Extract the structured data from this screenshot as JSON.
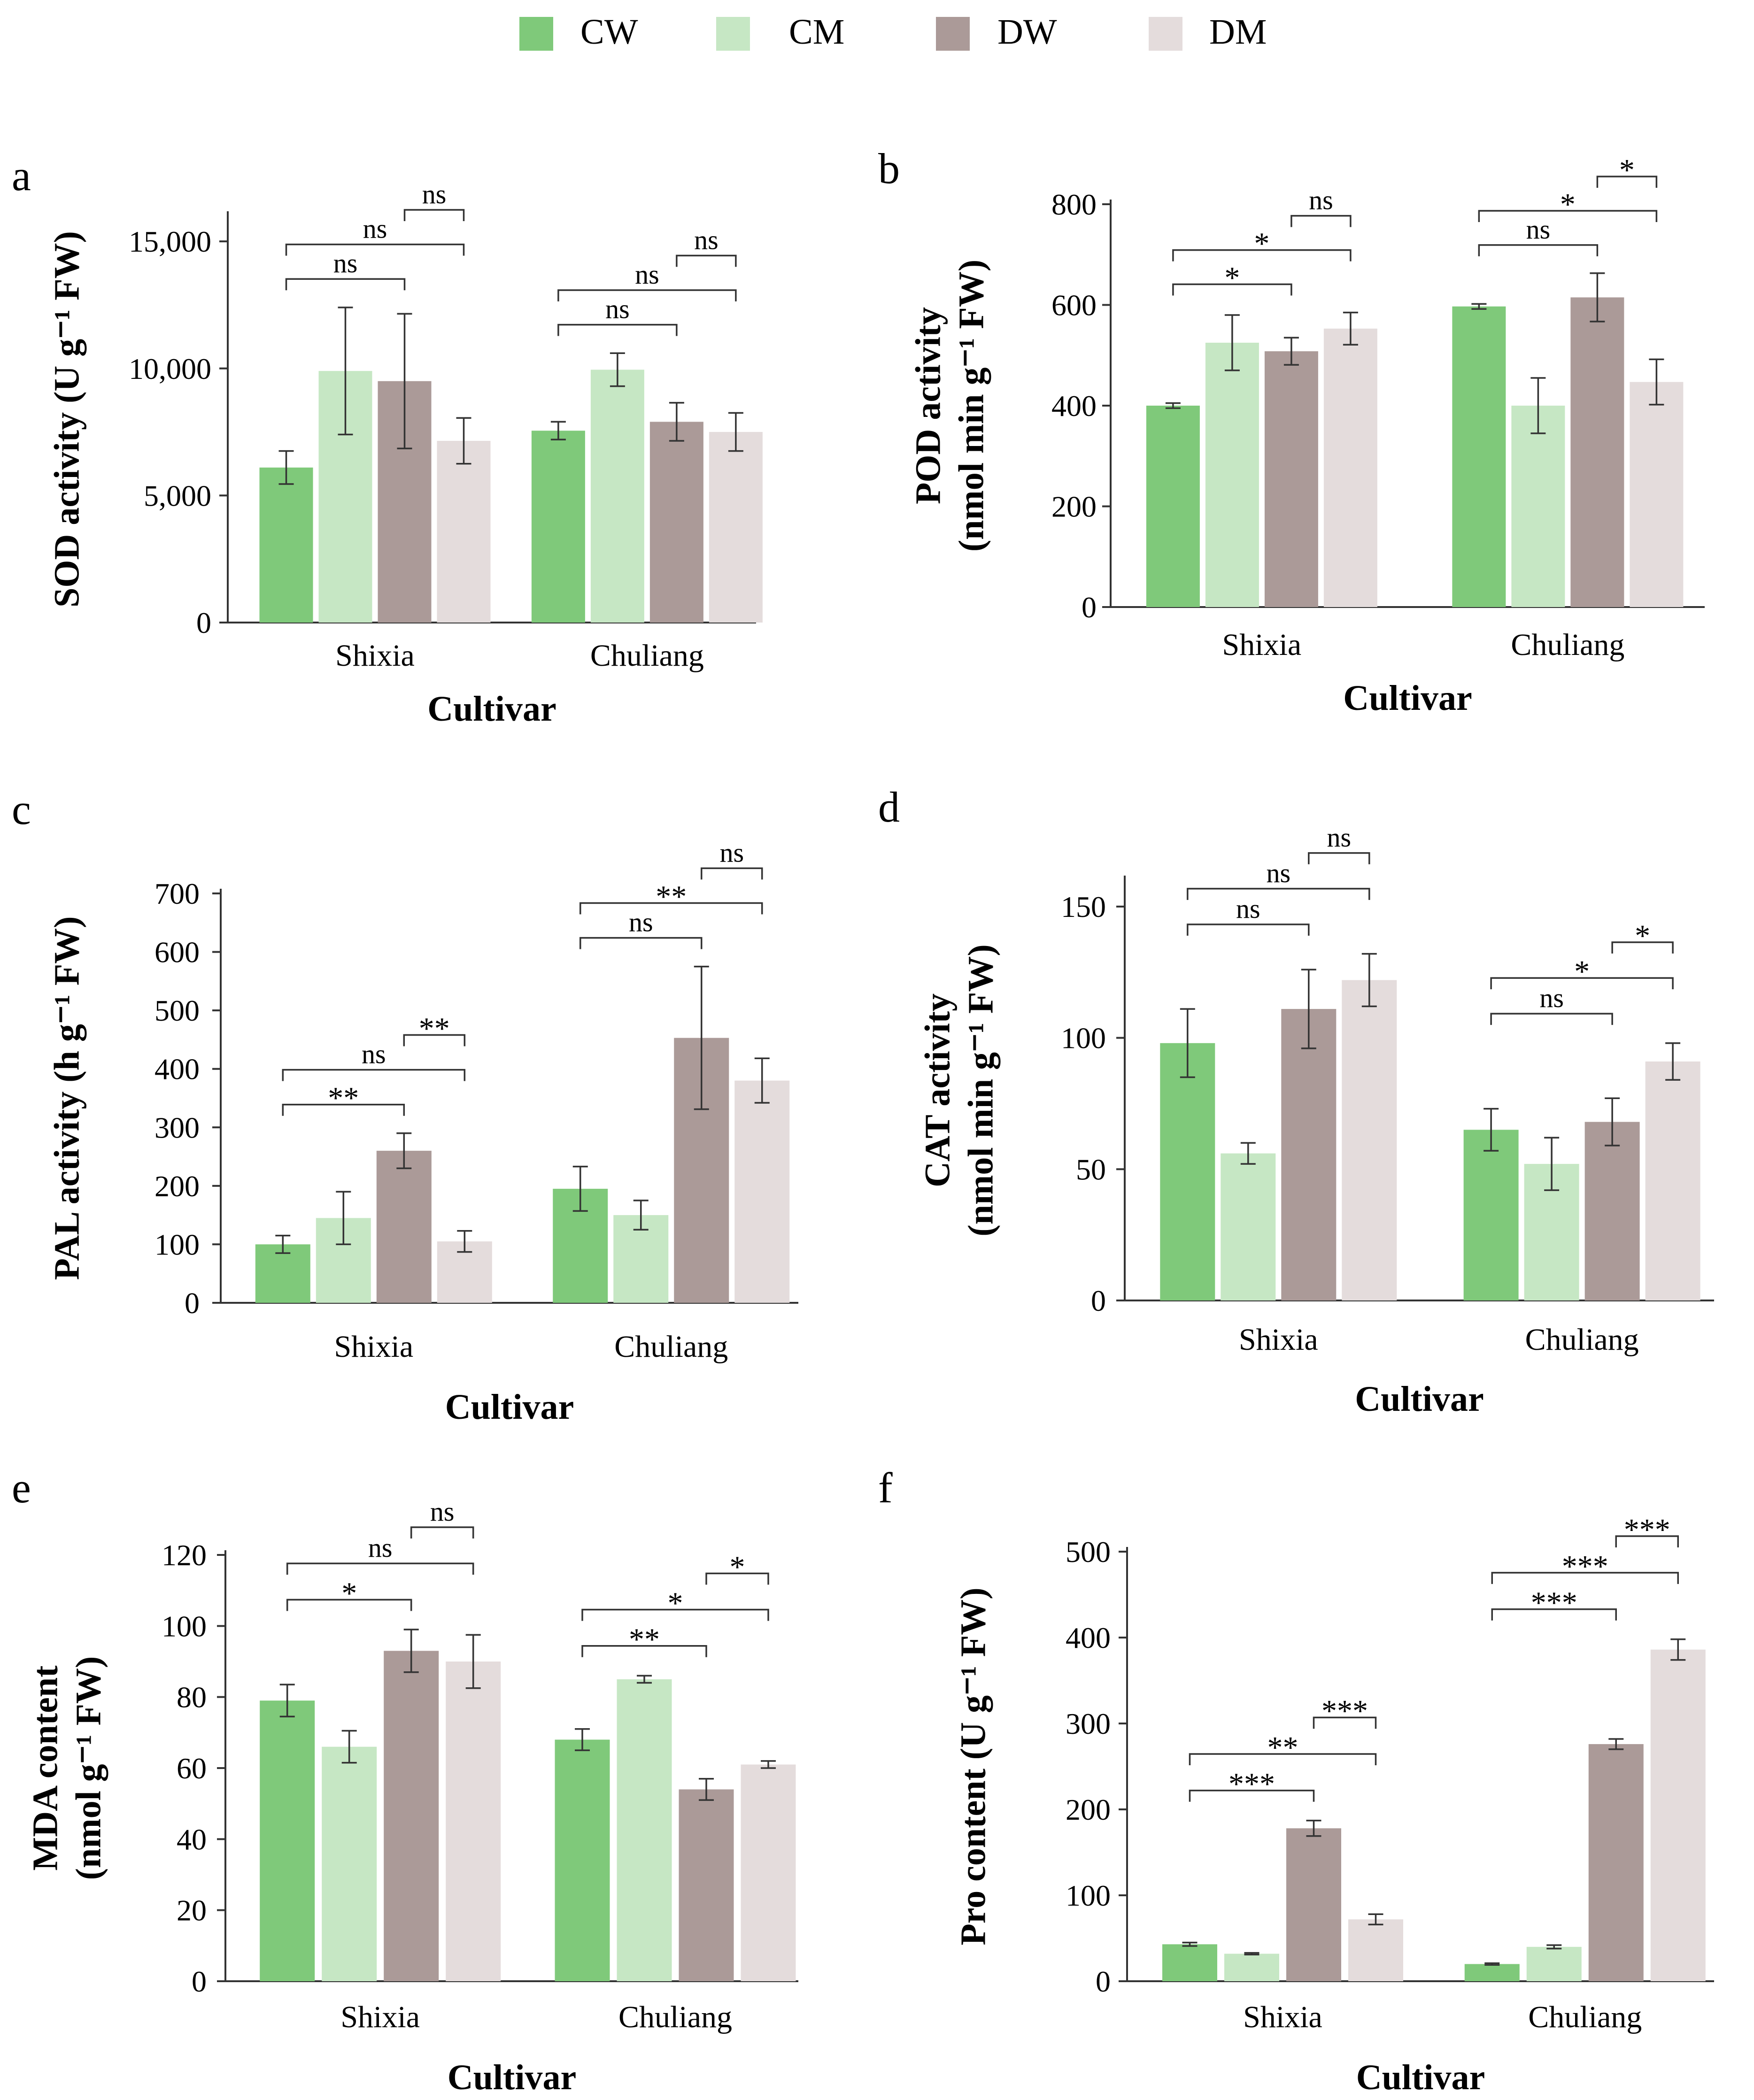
{
  "legend": [
    {
      "key": "CW",
      "label": "CW",
      "color": "#7fc97a"
    },
    {
      "key": "CM",
      "label": "CM",
      "color": "#c6e7c4"
    },
    {
      "key": "DW",
      "label": "DW",
      "color": "#ab9a98"
    },
    {
      "key": "DM",
      "label": "DM",
      "color": "#e4dcdc"
    }
  ],
  "chart_data": [
    {
      "panel": "a",
      "type": "bar",
      "categories": [
        "Shixia",
        "Chuliang"
      ],
      "xlabel": "Cultivar",
      "ylabel_lines": [
        "SOD activity (U g⁻¹ FW)"
      ],
      "ylim": [
        0,
        16000
      ],
      "yticks": [
        0,
        5000,
        10000,
        15000
      ],
      "ytick_labels": [
        "0",
        "5,000",
        "10,000",
        "15,000"
      ],
      "series": [
        {
          "name": "CW",
          "values": [
            6100,
            7550
          ],
          "errors": [
            650,
            350
          ]
        },
        {
          "name": "CM",
          "values": [
            9900,
            9950
          ],
          "errors": [
            2500,
            650
          ]
        },
        {
          "name": "DW",
          "values": [
            9500,
            7900
          ],
          "errors": [
            2650,
            750
          ]
        },
        {
          "name": "DM",
          "values": [
            7150,
            7500
          ],
          "errors": [
            900,
            750
          ]
        }
      ],
      "brackets": [
        {
          "cat": 0,
          "from": 0,
          "to": 2,
          "label": "ns"
        },
        {
          "cat": 0,
          "from": 0,
          "to": 3,
          "label": "ns"
        },
        {
          "cat": 0,
          "from": 2,
          "to": 3,
          "label": "ns"
        },
        {
          "cat": 1,
          "from": 0,
          "to": 2,
          "label": "ns"
        },
        {
          "cat": 1,
          "from": 0,
          "to": 3,
          "label": "ns"
        },
        {
          "cat": 1,
          "from": 2,
          "to": 3,
          "label": "ns"
        }
      ]
    },
    {
      "panel": "b",
      "type": "bar",
      "categories": [
        "Shixia",
        "Chuliang"
      ],
      "xlabel": "Cultivar",
      "ylabel_lines": [
        "POD activity",
        "(nmol min g⁻¹ FW)"
      ],
      "ylim": [
        0,
        800
      ],
      "yticks": [
        0,
        200,
        400,
        600,
        800
      ],
      "ytick_labels": [
        "0",
        "200",
        "400",
        "600",
        "800"
      ],
      "series": [
        {
          "name": "CW",
          "values": [
            400,
            597
          ],
          "errors": [
            5,
            5
          ]
        },
        {
          "name": "CM",
          "values": [
            525,
            400
          ],
          "errors": [
            55,
            55
          ]
        },
        {
          "name": "DW",
          "values": [
            508,
            615
          ],
          "errors": [
            27,
            48
          ]
        },
        {
          "name": "DM",
          "values": [
            553,
            447
          ],
          "errors": [
            32,
            45
          ]
        }
      ],
      "brackets": [
        {
          "cat": 0,
          "from": 0,
          "to": 2,
          "label": "*"
        },
        {
          "cat": 0,
          "from": 0,
          "to": 3,
          "label": "*"
        },
        {
          "cat": 0,
          "from": 2,
          "to": 3,
          "label": "ns"
        },
        {
          "cat": 1,
          "from": 0,
          "to": 2,
          "label": "ns"
        },
        {
          "cat": 1,
          "from": 0,
          "to": 3,
          "label": "*"
        },
        {
          "cat": 1,
          "from": 2,
          "to": 3,
          "label": "*"
        }
      ]
    },
    {
      "panel": "c",
      "type": "bar",
      "categories": [
        "Shixia",
        "Chuliang"
      ],
      "xlabel": "Cultivar",
      "ylabel_lines": [
        "PAL activity (h g⁻¹ FW)"
      ],
      "ylim": [
        0,
        700
      ],
      "yticks": [
        0,
        100,
        200,
        300,
        400,
        500,
        600,
        700
      ],
      "ytick_labels": [
        "0",
        "100",
        "200",
        "300",
        "400",
        "500",
        "600",
        "700"
      ],
      "series": [
        {
          "name": "CW",
          "values": [
            100,
            195
          ],
          "errors": [
            15,
            38
          ]
        },
        {
          "name": "CM",
          "values": [
            145,
            150
          ],
          "errors": [
            45,
            25
          ]
        },
        {
          "name": "DW",
          "values": [
            260,
            453
          ],
          "errors": [
            30,
            122
          ]
        },
        {
          "name": "DM",
          "values": [
            105,
            380
          ],
          "errors": [
            18,
            38
          ]
        }
      ],
      "brackets": [
        {
          "cat": 0,
          "from": 0,
          "to": 2,
          "label": "**"
        },
        {
          "cat": 0,
          "from": 0,
          "to": 3,
          "label": "ns"
        },
        {
          "cat": 0,
          "from": 2,
          "to": 3,
          "label": "**"
        },
        {
          "cat": 1,
          "from": 0,
          "to": 2,
          "label": "ns"
        },
        {
          "cat": 1,
          "from": 0,
          "to": 3,
          "label": "**"
        },
        {
          "cat": 1,
          "from": 2,
          "to": 3,
          "label": "ns"
        }
      ]
    },
    {
      "panel": "d",
      "type": "bar",
      "categories": [
        "Shixia",
        "Chuliang"
      ],
      "xlabel": "Cultivar",
      "ylabel_lines": [
        "CAT activity",
        "(nmol min g⁻¹ FW)"
      ],
      "ylim": [
        0,
        160
      ],
      "yticks": [
        0,
        50,
        100,
        150
      ],
      "ytick_labels": [
        "0",
        "50",
        "100",
        "150"
      ],
      "series": [
        {
          "name": "CW",
          "values": [
            98,
            65
          ],
          "errors": [
            13,
            8
          ]
        },
        {
          "name": "CM",
          "values": [
            56,
            52
          ],
          "errors": [
            4,
            10
          ]
        },
        {
          "name": "DW",
          "values": [
            111,
            68
          ],
          "errors": [
            15,
            9
          ]
        },
        {
          "name": "DM",
          "values": [
            122,
            91
          ],
          "errors": [
            10,
            7
          ]
        }
      ],
      "brackets": [
        {
          "cat": 0,
          "from": 0,
          "to": 2,
          "label": "ns"
        },
        {
          "cat": 0,
          "from": 0,
          "to": 3,
          "label": "ns"
        },
        {
          "cat": 0,
          "from": 2,
          "to": 3,
          "label": "ns"
        },
        {
          "cat": 1,
          "from": 0,
          "to": 2,
          "label": "ns"
        },
        {
          "cat": 1,
          "from": 0,
          "to": 3,
          "label": "*"
        },
        {
          "cat": 1,
          "from": 2,
          "to": 3,
          "label": "*"
        }
      ]
    },
    {
      "panel": "e",
      "type": "bar",
      "categories": [
        "Shixia",
        "Chuliang"
      ],
      "xlabel": "Cultivar",
      "ylabel_lines": [
        "MDA content",
        "(nmol g⁻¹ FW)"
      ],
      "ylim": [
        0,
        120
      ],
      "yticks": [
        0,
        20,
        40,
        60,
        80,
        100,
        120
      ],
      "ytick_labels": [
        "0",
        "20",
        "40",
        "60",
        "80",
        "100",
        "120"
      ],
      "series": [
        {
          "name": "CW",
          "values": [
            79,
            68
          ],
          "errors": [
            4.5,
            3
          ]
        },
        {
          "name": "CM",
          "values": [
            66,
            85
          ],
          "errors": [
            4.5,
            1
          ]
        },
        {
          "name": "DW",
          "values": [
            93,
            54
          ],
          "errors": [
            6,
            3
          ]
        },
        {
          "name": "DM",
          "values": [
            90,
            61
          ],
          "errors": [
            7.5,
            1
          ]
        }
      ],
      "brackets": [
        {
          "cat": 0,
          "from": 0,
          "to": 2,
          "label": "*"
        },
        {
          "cat": 0,
          "from": 0,
          "to": 3,
          "label": "ns"
        },
        {
          "cat": 0,
          "from": 2,
          "to": 3,
          "label": "ns"
        },
        {
          "cat": 1,
          "from": 0,
          "to": 2,
          "label": "**"
        },
        {
          "cat": 1,
          "from": 0,
          "to": 3,
          "label": "*"
        },
        {
          "cat": 1,
          "from": 2,
          "to": 3,
          "label": "*"
        }
      ]
    },
    {
      "panel": "f",
      "type": "bar",
      "categories": [
        "Shixia",
        "Chuliang"
      ],
      "xlabel": "Cultivar",
      "ylabel_lines": [
        "Pro content (U g⁻¹ FW)"
      ],
      "ylim": [
        0,
        500
      ],
      "yticks": [
        0,
        100,
        200,
        300,
        400,
        500
      ],
      "ytick_labels": [
        "0",
        "100",
        "200",
        "300",
        "400",
        "500"
      ],
      "series": [
        {
          "name": "CW",
          "values": [
            43,
            20
          ],
          "errors": [
            2,
            1
          ]
        },
        {
          "name": "CM",
          "values": [
            32,
            40
          ],
          "errors": [
            1,
            2
          ]
        },
        {
          "name": "DW",
          "values": [
            178,
            276
          ],
          "errors": [
            9,
            6
          ]
        },
        {
          "name": "DM",
          "values": [
            72,
            386
          ],
          "errors": [
            6,
            12
          ]
        }
      ],
      "brackets": [
        {
          "cat": 0,
          "from": 0,
          "to": 2,
          "label": "***"
        },
        {
          "cat": 0,
          "from": 0,
          "to": 3,
          "label": "**"
        },
        {
          "cat": 0,
          "from": 2,
          "to": 3,
          "label": "***"
        },
        {
          "cat": 1,
          "from": 0,
          "to": 2,
          "label": "***"
        },
        {
          "cat": 1,
          "from": 0,
          "to": 3,
          "label": "***"
        },
        {
          "cat": 1,
          "from": 2,
          "to": 3,
          "label": "***"
        }
      ]
    }
  ]
}
